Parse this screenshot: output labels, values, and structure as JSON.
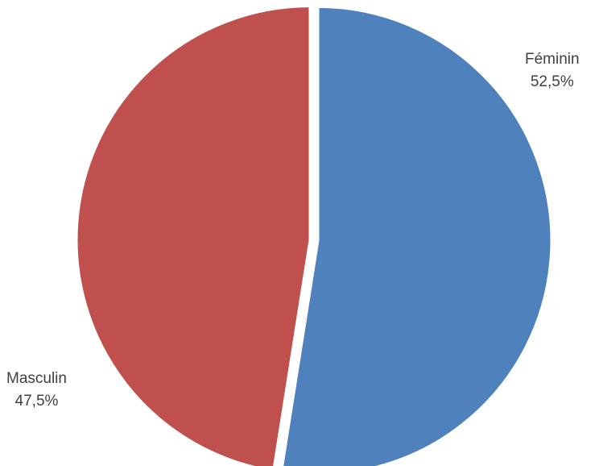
{
  "chart_data": {
    "type": "pie",
    "title": "",
    "slices": [
      {
        "label": "Féminin",
        "value": 52.5,
        "display": "52,5%",
        "color": "#4f81bd"
      },
      {
        "label": "Masculin",
        "value": 47.5,
        "display": "47,5%",
        "color": "#c0504d"
      }
    ],
    "start": "12 o'clock",
    "direction": "clockwise",
    "exploded": true,
    "legend": "none"
  }
}
